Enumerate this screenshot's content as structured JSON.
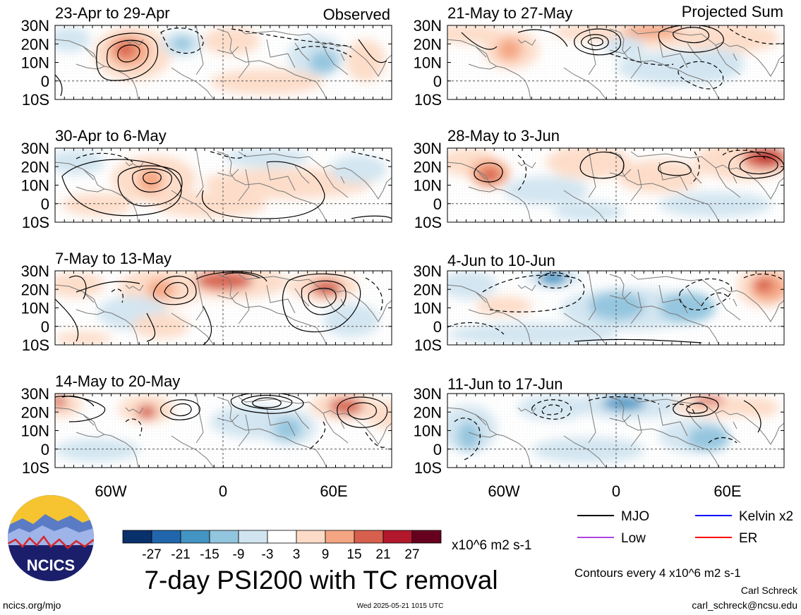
{
  "colors": {
    "contour": "#000000",
    "coast": "#7a7a7a",
    "mjo": "#000000",
    "kelvin": "#0000ff",
    "low": "#b044e0",
    "er": "#ff0000",
    "logo_bg": "#1b1f6b",
    "logo_sun": "#f6c431"
  },
  "panels": [
    {
      "date": "23-Apr to 29-Apr",
      "corner": "Observed"
    },
    {
      "date": "30-Apr to 6-May",
      "corner": ""
    },
    {
      "date": "7-May to 13-May",
      "corner": ""
    },
    {
      "date": "14-May to 20-May",
      "corner": ""
    },
    {
      "date": "21-May to 27-May",
      "corner": "Projected Sum"
    },
    {
      "date": "28-May to 3-Jun",
      "corner": ""
    },
    {
      "date": "4-Jun to 10-Jun",
      "corner": ""
    },
    {
      "date": "11-Jun to 17-Jun",
      "corner": ""
    }
  ],
  "lat_labels": [
    "30N",
    "20N",
    "10N",
    "0",
    "10S"
  ],
  "lon_labels": [
    "60W",
    "0",
    "60E"
  ],
  "colorbar": {
    "colors": [
      "#08306b",
      "#2166ac",
      "#4393c3",
      "#92c5de",
      "#d1e5f0",
      "#ffffff",
      "#fddbc7",
      "#f4a582",
      "#d6604d",
      "#b2182b",
      "#67001f"
    ],
    "tick_labels": [
      "-27",
      "-21",
      "-15",
      "-9",
      "-3",
      "3",
      "9",
      "15",
      "21",
      "27"
    ],
    "units": "x10^6 m2 s-1"
  },
  "legend": [
    {
      "label": "MJO",
      "color": "#000000"
    },
    {
      "label": "Kelvin x2",
      "color": "#0000ff"
    },
    {
      "label": "Low",
      "color": "#b044e0"
    },
    {
      "label": "ER",
      "color": "#ff0000"
    }
  ],
  "title": "7-day PSI200 with TC removal",
  "contour_note": "Contours every 4 x10^6 m2 s-1",
  "author": "Carl Schreck",
  "email": "carl_schreck@ncsu.edu",
  "site": "ncics.org/mjo",
  "timestamp": "Wed 2025-05-21 1015 UTC",
  "logo_text": "NCICS"
}
